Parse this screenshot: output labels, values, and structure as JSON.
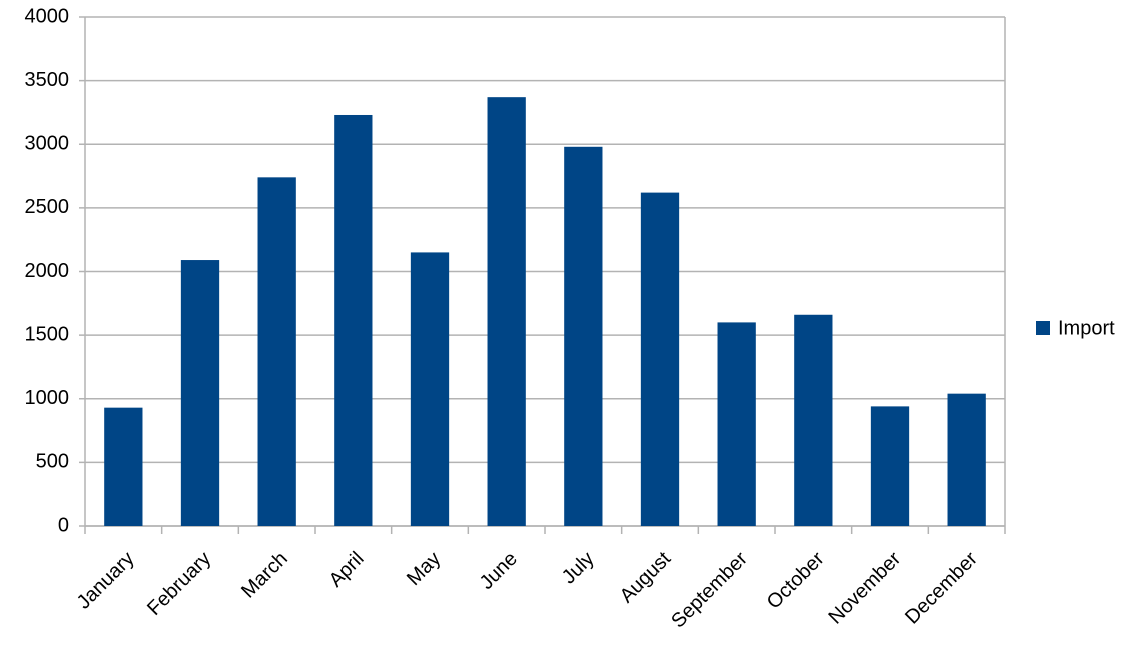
{
  "chart_data": {
    "type": "bar",
    "categories": [
      "January",
      "February",
      "March",
      "April",
      "May",
      "June",
      "July",
      "August",
      "September",
      "October",
      "November",
      "December"
    ],
    "series": [
      {
        "name": "Import",
        "color": "#004586",
        "values": [
          930,
          2090,
          2740,
          3230,
          2150,
          3370,
          2980,
          2620,
          1600,
          1660,
          940,
          1040
        ]
      }
    ],
    "ylim": [
      0,
      4000
    ],
    "yticks": [
      0,
      500,
      1000,
      1500,
      2000,
      2500,
      3000,
      3500,
      4000
    ],
    "grid": true,
    "legend": "right"
  }
}
